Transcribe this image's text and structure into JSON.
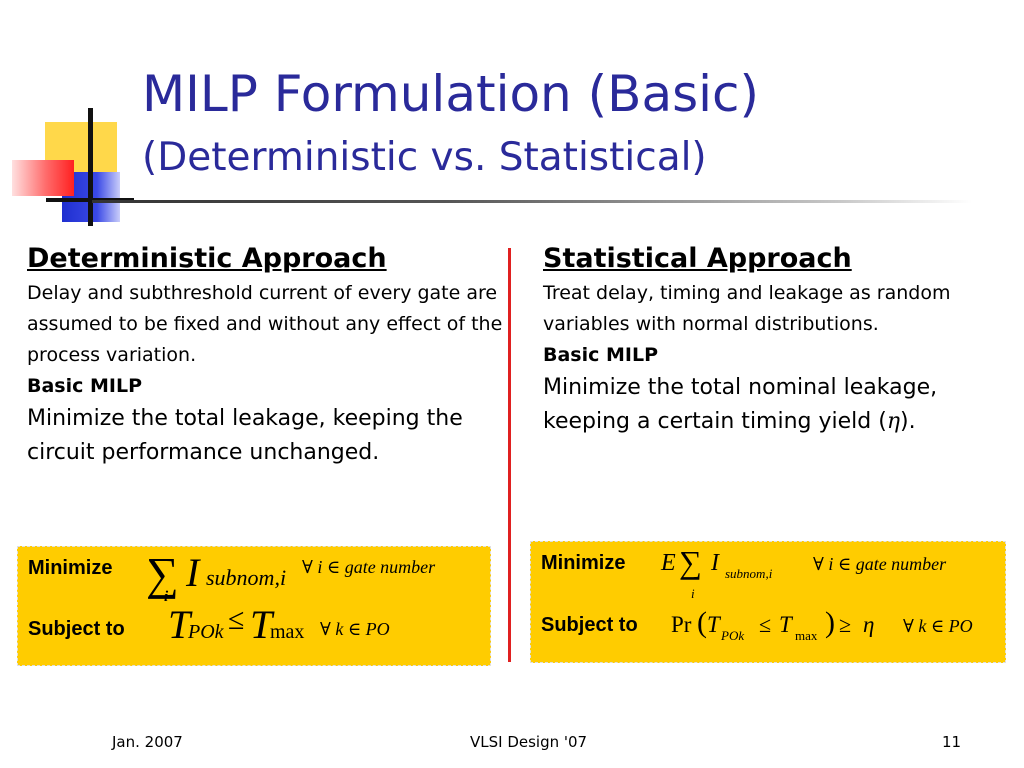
{
  "title": "MILP Formulation (Basic)",
  "subtitle": "(Deterministic vs. Statistical)",
  "left": {
    "heading": "Deterministic Approach",
    "description": "Delay and subthreshold current of every gate are assumed to be fixed and without any effect of the process variation.",
    "milp_label": "Basic MILP",
    "milp_text": "Minimize the total leakage, keeping the circuit performance unchanged.",
    "box": {
      "minimize_label": "Minimize",
      "objective_I": "I",
      "objective_sub": "subnom,i",
      "sum_index": "i",
      "objective_cond": "∀ i ∈ gate number",
      "subject_label": "Subject to",
      "constraint_T1": "T",
      "constraint_T1_sub": "POk",
      "constraint_le": "≤",
      "constraint_T2": "T",
      "constraint_T2_sub": "max",
      "constraint_cond": "∀ k ∈ PO"
    }
  },
  "right": {
    "heading": "Statistical Approach",
    "description": "Treat delay, timing and leakage as random variables with normal distributions.",
    "milp_label": "Basic MILP",
    "milp_text_before": "Minimize the total nominal leakage, keeping a certain timing yield (",
    "eta": "η",
    "milp_text_after": ").",
    "box": {
      "minimize_label": "Minimize",
      "objective_E": "E",
      "objective_I": "I",
      "objective_sub": "subnom,i",
      "sum_index": "i",
      "objective_cond": "∀ i  ∈ gate number",
      "subject_label": "Subject to",
      "constraint_pr": "Pr",
      "constraint_T1": "T",
      "constraint_T1_sub": "POk",
      "constraint_le": "≤",
      "constraint_T2": "T",
      "constraint_T2_sub": "max",
      "constraint_ge": "≥",
      "constraint_eta": "η",
      "constraint_cond": "∀ k  ∈ PO"
    }
  },
  "footer": {
    "date": "Jan. 2007",
    "conference": "VLSI Design '07",
    "page": "11"
  }
}
